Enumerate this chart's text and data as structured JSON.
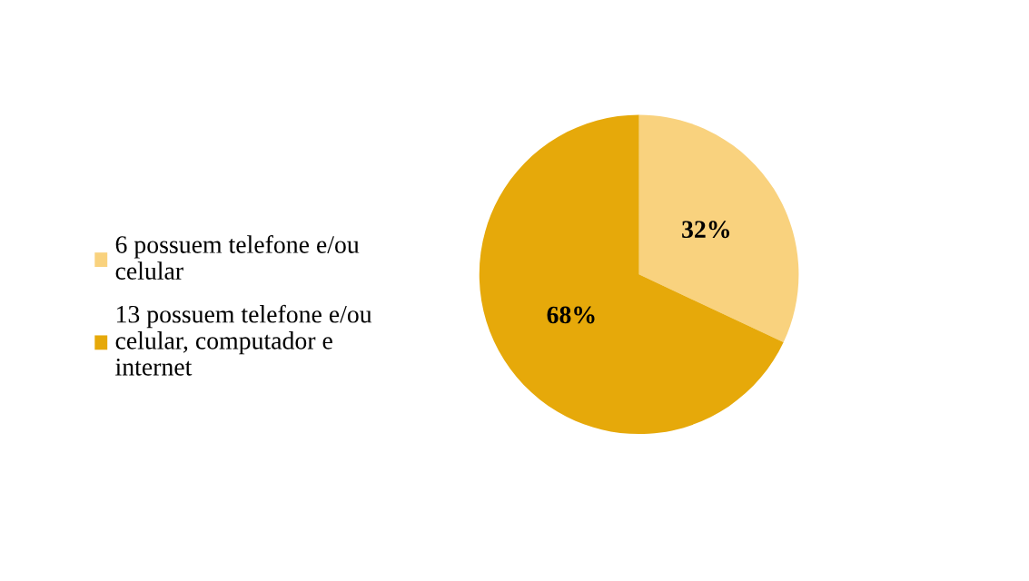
{
  "chart_data": {
    "type": "pie",
    "categories": [
      "6 possuem telefone e/ou\ncelular",
      "13 possuem telefone e/ou\ncelular, computador e\ninternet"
    ],
    "values": [
      32,
      68
    ],
    "colors": [
      "#f9d27e",
      "#e6a90a"
    ],
    "value_labels": [
      "32%",
      "68%"
    ],
    "legend": "left"
  }
}
